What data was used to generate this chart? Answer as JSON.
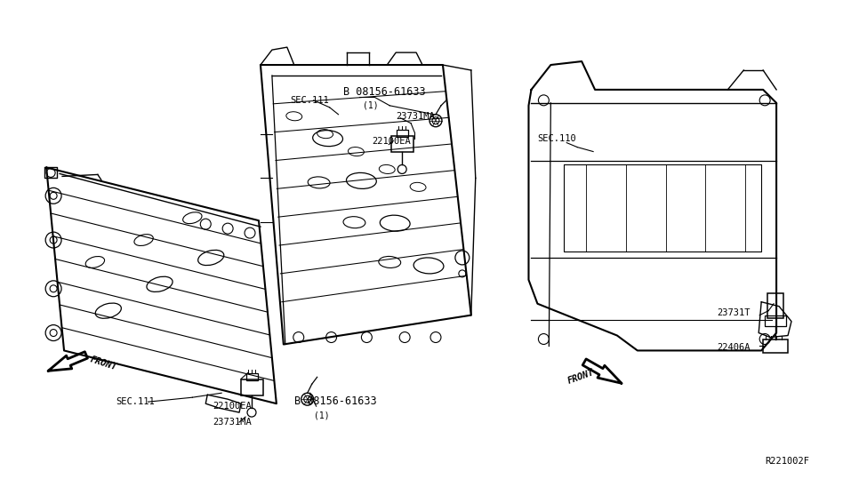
{
  "bg_color": "#ffffff",
  "line_color": "#000000",
  "fig_width": 9.75,
  "fig_height": 5.66,
  "dpi": 100,
  "labels": {
    "b_label_top": "B 08156-61633",
    "b_label_top_sub": "(1)",
    "sec111_top": "SEC.111",
    "part23731ma_top": "23731MA",
    "part22100ea_top": "22100EA",
    "b_label_bot": "B 08156-61633",
    "b_label_bot_sub": "(1)",
    "part22100ea_bot": "22100EA",
    "part23731ma_bot": "23731MA",
    "sec111_bot": "SEC.111",
    "front_left": "FRONT",
    "sec110": "SEC.110",
    "part23731t": "23731T",
    "part22406a": "22406A",
    "front_right": "FRONT",
    "ref_code": "R221002F"
  }
}
